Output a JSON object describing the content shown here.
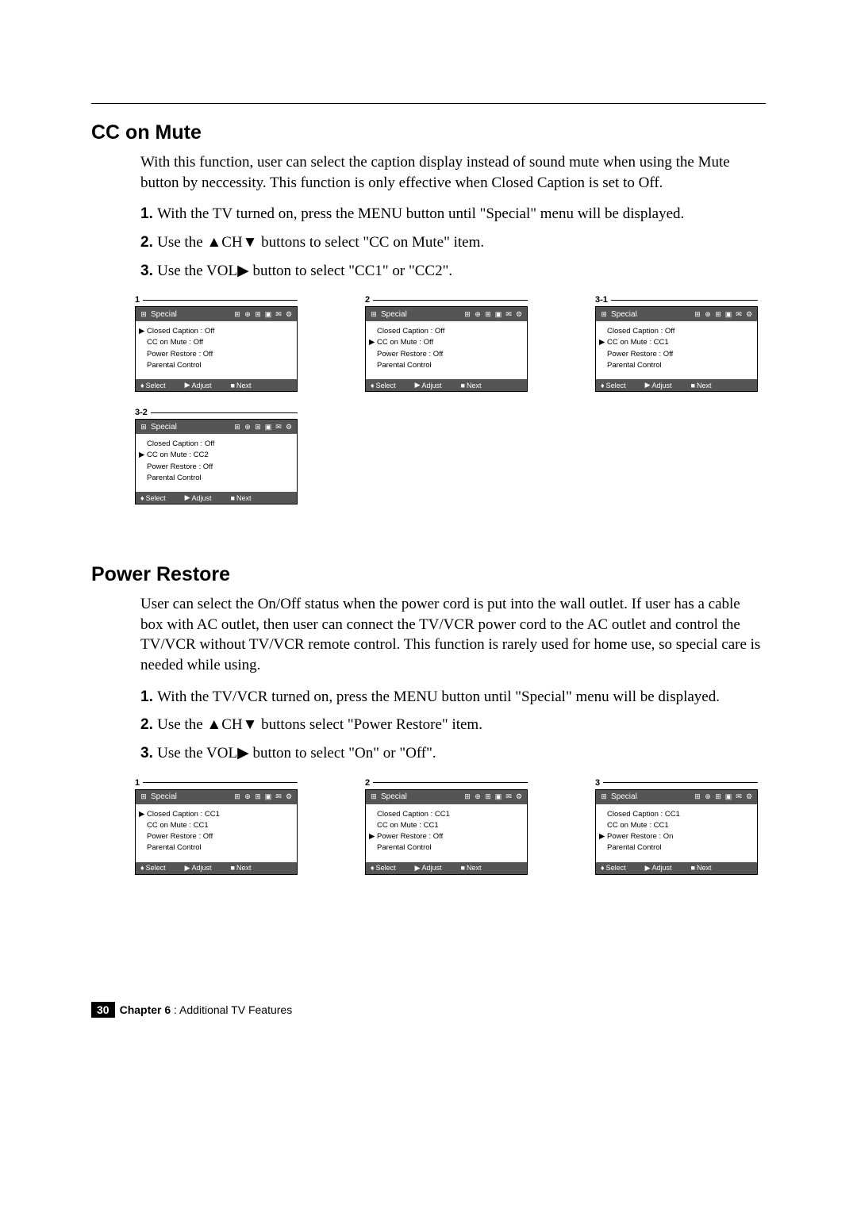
{
  "pageNumber": "30",
  "chapterLabel": "Chapter 6",
  "chapterTitle": ": Additional TV Features",
  "section1": {
    "heading": "CC on Mute",
    "intro": "With this function, user can select the caption display instead of sound mute when using the Mute button by neccessity. This function is only effective when Closed Caption is set to Off.",
    "steps": [
      "With the TV turned on, press the MENU button until \"Special\" menu will be displayed.",
      "Use the ▲CH▼ buttons to select \"CC on Mute\" item.",
      "Use the VOL▶ button to select \"CC1\" or \"CC2\"."
    ],
    "panels": [
      {
        "label": "1",
        "title": "Special",
        "selectedIndex": 0,
        "items": [
          {
            "k": "Closed Caption",
            "v": "Off"
          },
          {
            "k": "CC on Mute",
            "v": "Off"
          },
          {
            "k": "Power Restore",
            "v": "Off"
          },
          {
            "k": "Parental Control",
            "v": ""
          }
        ]
      },
      {
        "label": "2",
        "title": "Special",
        "selectedIndex": 1,
        "items": [
          {
            "k": "Closed Caption",
            "v": "Off"
          },
          {
            "k": "CC on Mute",
            "v": "Off"
          },
          {
            "k": "Power Restore",
            "v": "Off"
          },
          {
            "k": "Parental Control",
            "v": ""
          }
        ]
      },
      {
        "label": "3-1",
        "title": "Special",
        "selectedIndex": 1,
        "items": [
          {
            "k": "Closed Caption",
            "v": "Off"
          },
          {
            "k": "CC on Mute",
            "v": "CC1"
          },
          {
            "k": "Power Restore",
            "v": "Off"
          },
          {
            "k": "Parental Control",
            "v": ""
          }
        ]
      },
      {
        "label": "3-2",
        "title": "Special",
        "selectedIndex": 1,
        "items": [
          {
            "k": "Closed Caption",
            "v": "Off"
          },
          {
            "k": "CC on Mute",
            "v": "CC2"
          },
          {
            "k": "Power Restore",
            "v": "Off"
          },
          {
            "k": "Parental Control",
            "v": ""
          }
        ]
      }
    ]
  },
  "section2": {
    "heading": "Power Restore",
    "intro": "User can select the On/Off status when the power cord is put into the wall outlet. If user has a cable box with AC outlet, then user can connect the TV/VCR power cord to the AC outlet and control the TV/VCR without TV/VCR remote control. This function is rarely used for home use, so special care is needed while using.",
    "steps": [
      "With the TV/VCR turned on, press the MENU button until \"Special\" menu will be displayed.",
      "Use the ▲CH▼ buttons select \"Power Restore\" item.",
      "Use the VOL▶ button to select \"On\" or \"Off\"."
    ],
    "panels": [
      {
        "label": "1",
        "title": "Special",
        "selectedIndex": 0,
        "items": [
          {
            "k": "Closed Caption",
            "v": "CC1"
          },
          {
            "k": "CC on Mute",
            "v": "CC1"
          },
          {
            "k": "Power Restore",
            "v": "Off"
          },
          {
            "k": "Parental Control",
            "v": ""
          }
        ]
      },
      {
        "label": "2",
        "title": "Special",
        "selectedIndex": 2,
        "items": [
          {
            "k": "Closed Caption",
            "v": "CC1"
          },
          {
            "k": "CC on Mute",
            "v": "CC1"
          },
          {
            "k": "Power Restore",
            "v": "Off"
          },
          {
            "k": "Parental Control",
            "v": ""
          }
        ]
      },
      {
        "label": "3",
        "title": "Special",
        "selectedIndex": 2,
        "items": [
          {
            "k": "Closed Caption",
            "v": "CC1"
          },
          {
            "k": "CC on Mute",
            "v": "CC1"
          },
          {
            "k": "Power Restore",
            "v": "On"
          },
          {
            "k": "Parental Control",
            "v": ""
          }
        ]
      }
    ]
  },
  "footer": {
    "select": "Select",
    "adjust": "Adjust",
    "next": "Next"
  },
  "headerIcons": [
    "⊞",
    "⊕",
    "⊞",
    "▣",
    "✉",
    "⚙"
  ],
  "menuIcon": "⊞"
}
